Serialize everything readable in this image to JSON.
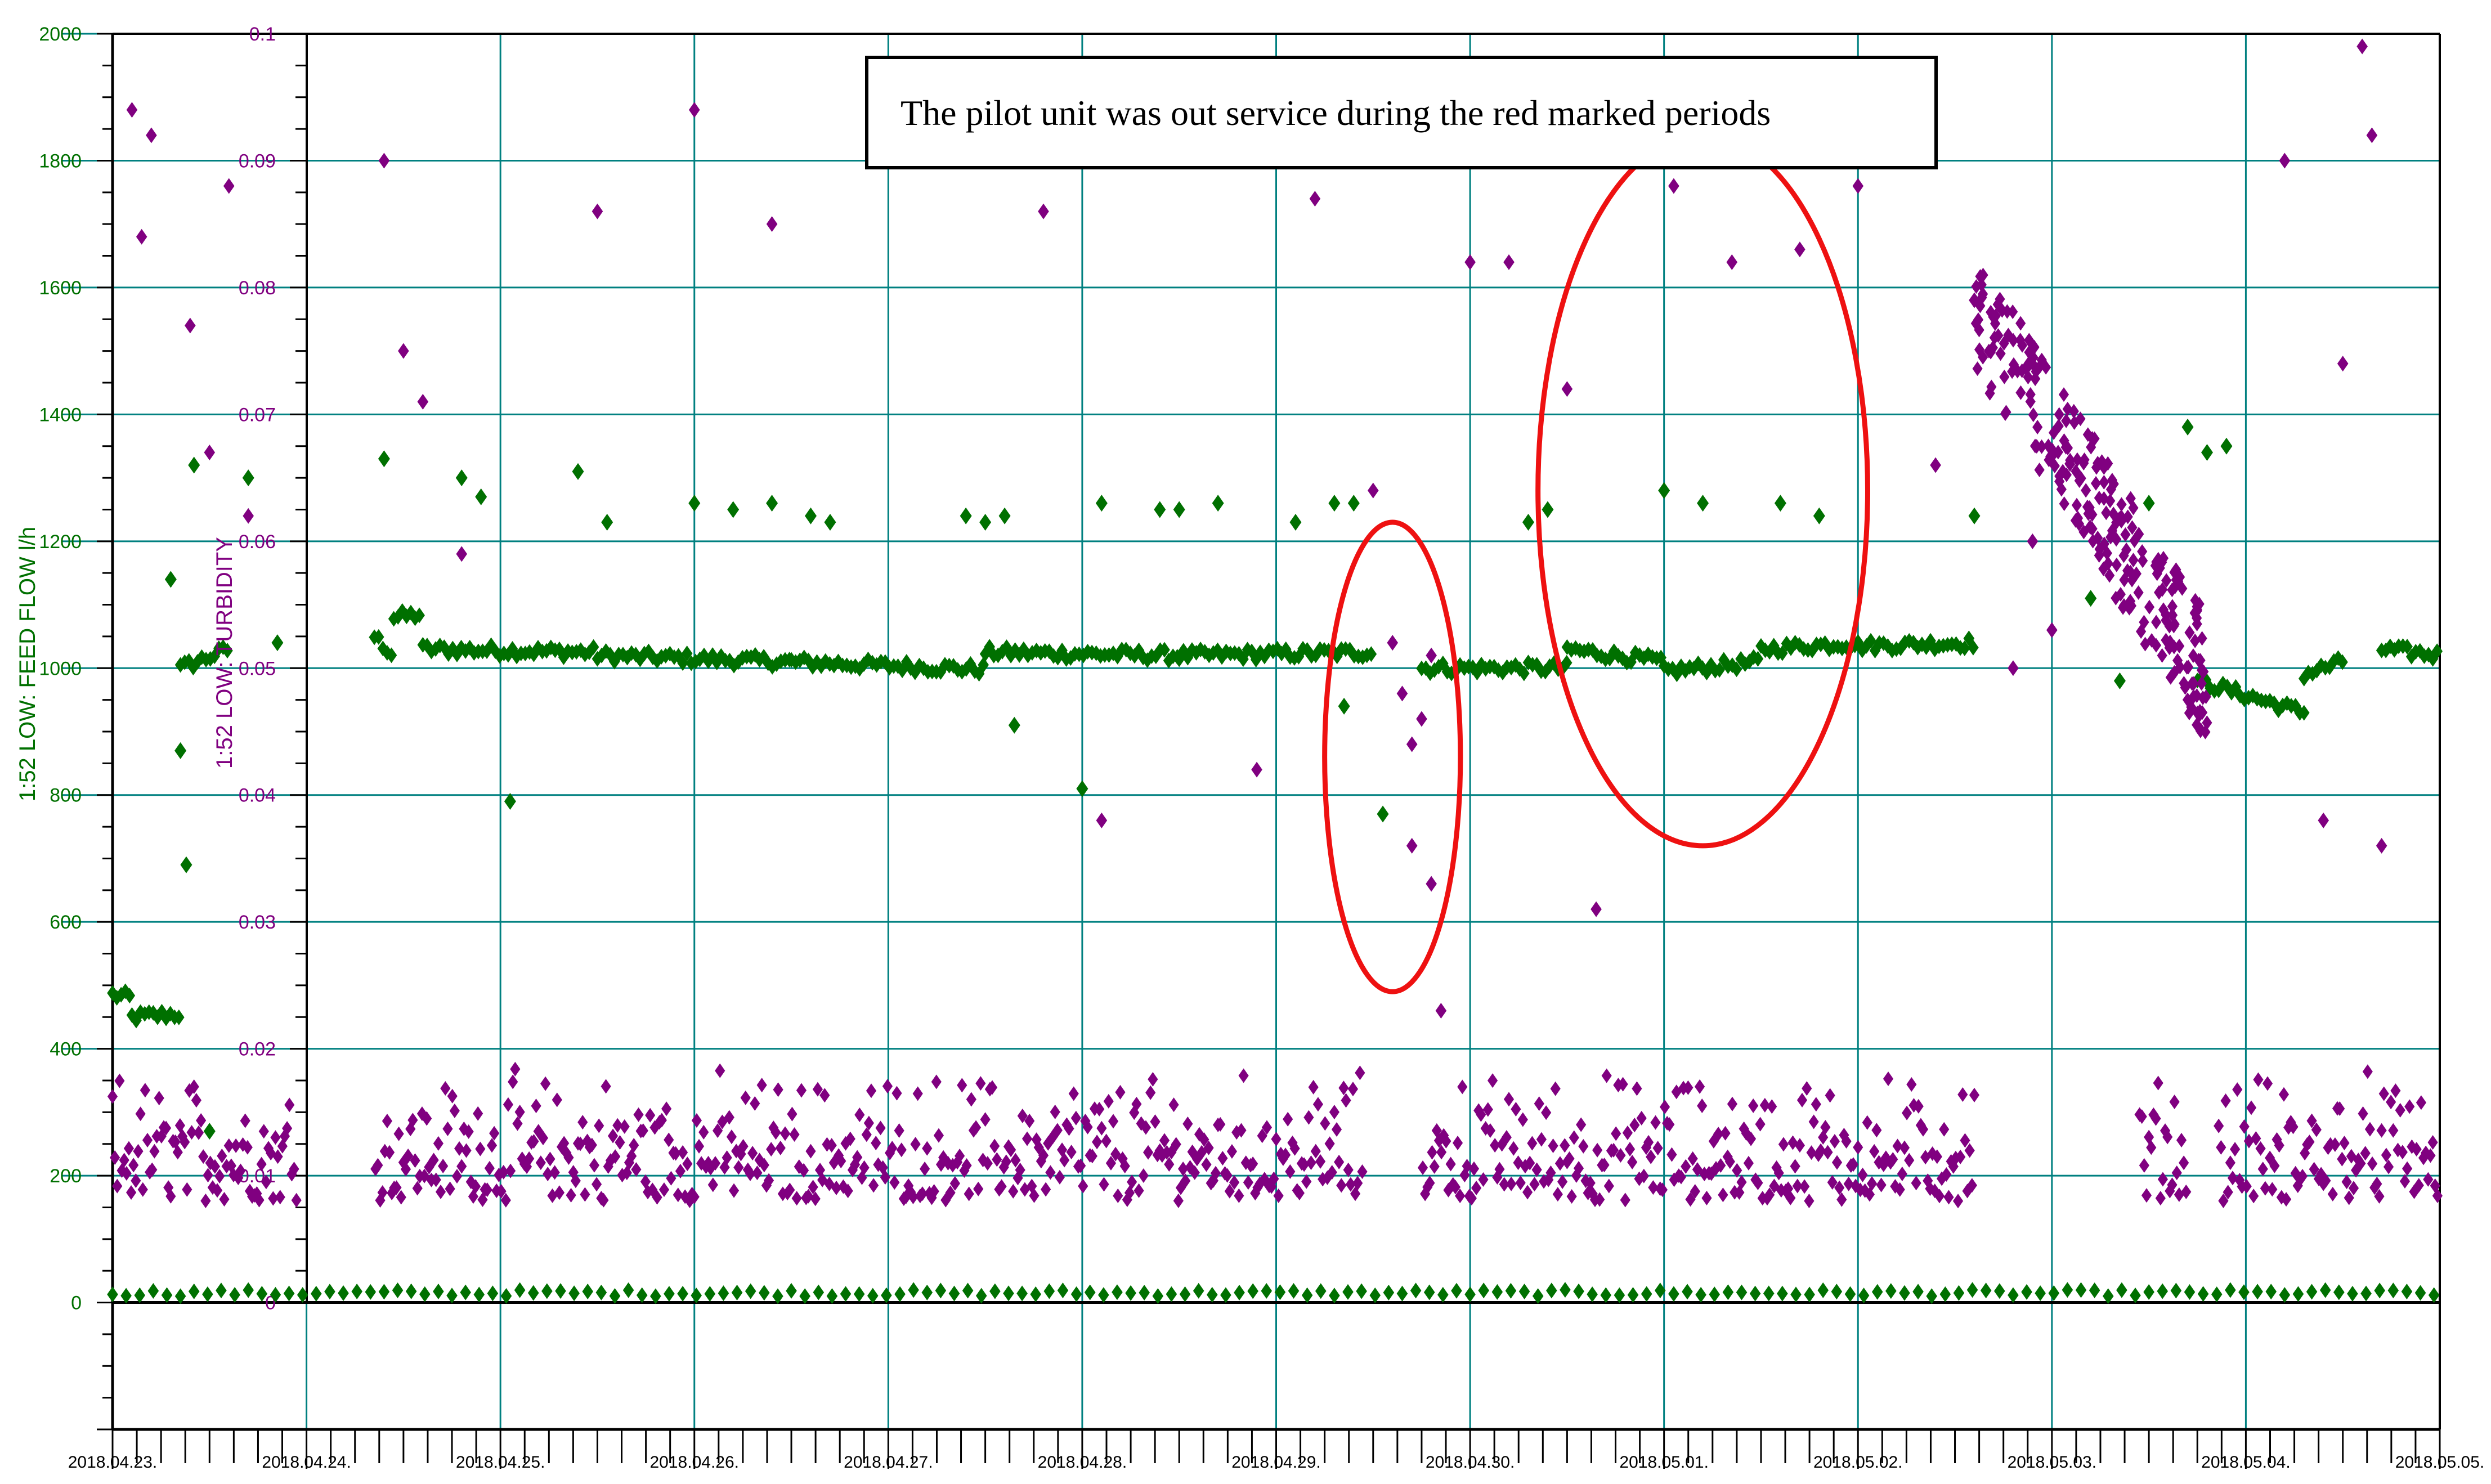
{
  "chart_data": {
    "type": "scatter",
    "x_tick_labels": [
      "2018.04.23.",
      "2018.04.24.",
      "2018.04.25.",
      "2018.04.26.",
      "2018.04.27.",
      "2018.04.28.",
      "2018.04.29.",
      "2018.04.30.",
      "2018.05.01.",
      "2018.05.02.",
      "2018.05.03.",
      "2018.05.04.",
      "2018.05.05."
    ],
    "xlim_days": [
      0,
      12
    ],
    "ylim_left": [
      -200,
      2000
    ],
    "ylim_right": [
      0,
      0.1
    ],
    "y_left_ticks": [
      "0",
      "200",
      "400",
      "600",
      "800",
      "1000",
      "1200",
      "1400",
      "1600",
      "1800",
      "2000"
    ],
    "y_right_ticks": [
      "0",
      "0.01",
      "0.02",
      "0.03",
      "0.04",
      "0.05",
      "0.06",
      "0.07",
      "0.08",
      "0.09",
      "0.1"
    ],
    "ylabel_left": "1:52 LOW: FEED FLOW l/h",
    "ylabel_right": "1:52 LOW: TURBIDITY",
    "grid": true,
    "colors": {
      "flow": "#007000",
      "turbidity": "#800080",
      "grid": "#008080",
      "highlight": "#ee1111"
    },
    "annotation": "The pilot unit was out service during the red marked periods",
    "highlight_ellipses": [
      {
        "center": [
          6.6,
          0.043
        ],
        "semi_axes_days_turb": [
          0.35,
          0.0185
        ]
      },
      {
        "center": [
          8.2,
          0.064
        ],
        "semi_axes_days_turb": [
          0.85,
          0.028
        ]
      }
    ],
    "series": [
      {
        "name": "1:52 LOW: FEED FLOW l/h",
        "axis": "left",
        "segments": [
          {
            "x_start": 0.0,
            "x_end": 0.1,
            "y_start": 485,
            "y_end": 480
          },
          {
            "x_start": 0.1,
            "x_end": 0.35,
            "y_start": 450,
            "y_end": 455
          },
          {
            "x_start": 0.35,
            "x_end": 0.6,
            "y_start": 1000,
            "y_end": 1030
          },
          {
            "x_start": 1.35,
            "x_end": 1.45,
            "y_start": 1050,
            "y_end": 1020
          },
          {
            "x_start": 1.45,
            "x_end": 1.6,
            "y_start": 1080,
            "y_end": 1085
          },
          {
            "x_start": 1.6,
            "x_end": 2.5,
            "y_start": 1030,
            "y_end": 1025
          },
          {
            "x_start": 2.5,
            "x_end": 3.5,
            "y_start": 1020,
            "y_end": 1010
          },
          {
            "x_start": 3.5,
            "x_end": 4.5,
            "y_start": 1010,
            "y_end": 998
          },
          {
            "x_start": 4.5,
            "x_end": 5.5,
            "y_start": 1025,
            "y_end": 1020
          },
          {
            "x_start": 5.5,
            "x_end": 6.5,
            "y_start": 1020,
            "y_end": 1025
          },
          {
            "x_start": 6.75,
            "x_end": 7.5,
            "y_start": 1000,
            "y_end": 1000
          },
          {
            "x_start": 7.5,
            "x_end": 8.0,
            "y_start": 1030,
            "y_end": 1010
          },
          {
            "x_start": 8.0,
            "x_end": 8.5,
            "y_start": 995,
            "y_end": 1010
          },
          {
            "x_start": 8.5,
            "x_end": 9.0,
            "y_start": 1030,
            "y_end": 1040
          },
          {
            "x_start": 9.0,
            "x_end": 9.6,
            "y_start": 1035,
            "y_end": 1040
          },
          {
            "x_start": 10.75,
            "x_end": 11.3,
            "y_start": 980,
            "y_end": 930
          },
          {
            "x_start": 11.3,
            "x_end": 11.5,
            "y_start": 990,
            "y_end": 1010
          },
          {
            "x_start": 11.7,
            "x_end": 12.0,
            "y_start": 1030,
            "y_end": 1020
          },
          {
            "x_start": 0.0,
            "x_end": 12.0,
            "y_start": 15,
            "y_end": 15
          }
        ],
        "points": [
          [
            0.3,
            1140
          ],
          [
            0.35,
            870
          ],
          [
            0.38,
            690
          ],
          [
            0.42,
            1320
          ],
          [
            0.5,
            270
          ],
          [
            0.7,
            1300
          ],
          [
            0.85,
            1040
          ],
          [
            1.4,
            1330
          ],
          [
            1.8,
            1300
          ],
          [
            1.9,
            1270
          ],
          [
            2.05,
            790
          ],
          [
            2.4,
            1310
          ],
          [
            2.55,
            1230
          ],
          [
            3.0,
            1260
          ],
          [
            3.2,
            1250
          ],
          [
            3.4,
            1260
          ],
          [
            3.6,
            1240
          ],
          [
            3.7,
            1230
          ],
          [
            4.4,
            1240
          ],
          [
            4.5,
            1230
          ],
          [
            4.6,
            1240
          ],
          [
            4.65,
            910
          ],
          [
            5.0,
            810
          ],
          [
            5.1,
            1260
          ],
          [
            5.4,
            1250
          ],
          [
            5.5,
            1250
          ],
          [
            5.7,
            1260
          ],
          [
            6.1,
            1230
          ],
          [
            6.3,
            1260
          ],
          [
            6.4,
            1260
          ],
          [
            6.35,
            940
          ],
          [
            6.55,
            770
          ],
          [
            7.3,
            1230
          ],
          [
            7.4,
            1250
          ],
          [
            8.0,
            1280
          ],
          [
            8.2,
            1260
          ],
          [
            8.6,
            1260
          ],
          [
            8.8,
            1240
          ],
          [
            9.6,
            1240
          ],
          [
            10.2,
            1110
          ],
          [
            10.35,
            980
          ],
          [
            10.5,
            1260
          ],
          [
            10.7,
            1380
          ],
          [
            10.8,
            1340
          ],
          [
            10.9,
            1350
          ]
        ]
      },
      {
        "name": "1:52 LOW: TURBIDITY",
        "axis": "right",
        "band": {
          "x_start": 0.0,
          "x_end": 12.0,
          "y_low": 0.008,
          "y_high": 0.019
        },
        "points": [
          [
            0.1,
            0.094
          ],
          [
            0.15,
            0.084
          ],
          [
            0.2,
            0.092
          ],
          [
            0.4,
            0.077
          ],
          [
            0.5,
            0.067
          ],
          [
            0.6,
            0.088
          ],
          [
            0.7,
            0.062
          ],
          [
            1.4,
            0.09
          ],
          [
            1.5,
            0.075
          ],
          [
            1.6,
            0.071
          ],
          [
            1.8,
            0.059
          ],
          [
            2.5,
            0.086
          ],
          [
            3.0,
            0.094
          ],
          [
            3.4,
            0.085
          ],
          [
            4.2,
            0.097
          ],
          [
            4.8,
            0.086
          ],
          [
            5.1,
            0.038
          ],
          [
            5.9,
            0.042
          ],
          [
            6.2,
            0.087
          ],
          [
            6.45,
            0.096
          ],
          [
            6.5,
            0.064
          ],
          [
            6.6,
            0.052
          ],
          [
            6.65,
            0.048
          ],
          [
            6.7,
            0.044
          ],
          [
            6.75,
            0.046
          ],
          [
            6.8,
            0.051
          ],
          [
            6.7,
            0.036
          ],
          [
            6.8,
            0.033
          ],
          [
            6.85,
            0.023
          ],
          [
            7.0,
            0.082
          ],
          [
            7.2,
            0.082
          ],
          [
            7.5,
            0.072
          ],
          [
            7.65,
            0.031
          ],
          [
            8.0,
            0.092
          ],
          [
            8.05,
            0.088
          ],
          [
            8.35,
            0.082
          ],
          [
            8.6,
            0.093
          ],
          [
            8.7,
            0.083
          ],
          [
            9.0,
            0.088
          ],
          [
            9.4,
            0.066
          ],
          [
            9.6,
            0.079
          ],
          [
            9.8,
            0.05
          ],
          [
            9.9,
            0.06
          ],
          [
            10.0,
            0.053
          ],
          [
            11.2,
            0.09
          ],
          [
            11.4,
            0.038
          ],
          [
            11.5,
            0.074
          ],
          [
            11.6,
            0.099
          ],
          [
            11.65,
            0.092
          ],
          [
            11.7,
            0.036
          ]
        ]
      }
    ]
  }
}
